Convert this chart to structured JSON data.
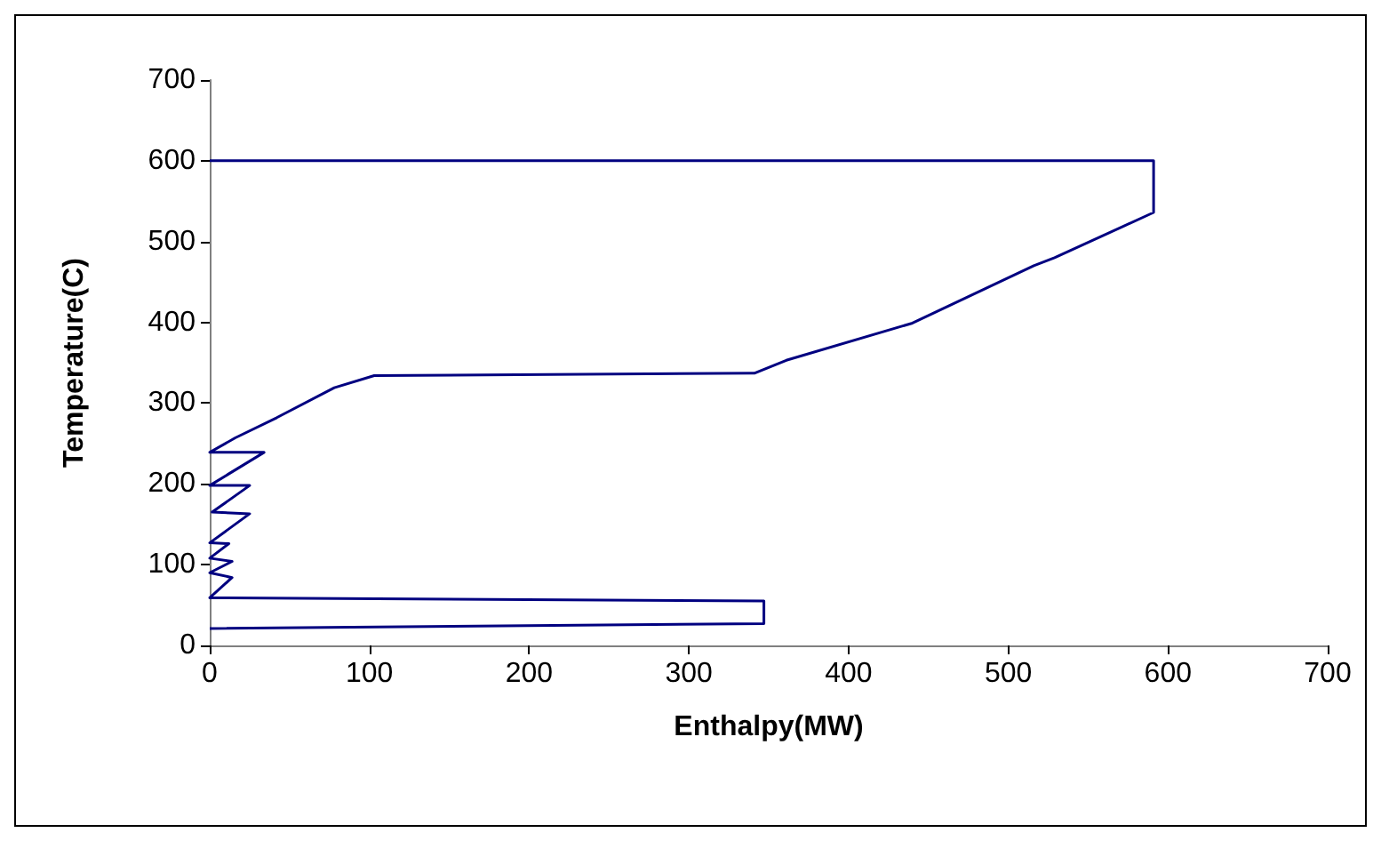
{
  "chart_data": {
    "type": "line",
    "xlabel": "Enthalpy(MW)",
    "ylabel": "Temperature(C)",
    "x": [
      0,
      347,
      347,
      0,
      14,
      0,
      14,
      0,
      12,
      0,
      25,
      1.5,
      25,
      0,
      34,
      0,
      16,
      42,
      78,
      103,
      341,
      361,
      440,
      516,
      529,
      591,
      591,
      0
    ],
    "series": [
      {
        "color": "#000080",
        "values": [
          21,
          27,
          55,
          59,
          84,
          90,
          104,
          108,
          126,
          127,
          163,
          165,
          198,
          198,
          239,
          239,
          257,
          282,
          319,
          334,
          337,
          353,
          399,
          470,
          480,
          536,
          600,
          600
        ]
      }
    ],
    "xlim": [
      0,
      700
    ],
    "xticks": [
      0,
      100,
      200,
      300,
      400,
      500,
      600,
      700
    ],
    "ylim": [
      0,
      700
    ],
    "yticks": [
      0,
      100,
      200,
      300,
      400,
      500,
      600,
      700
    ],
    "marker": "none",
    "line_style": "solid"
  }
}
